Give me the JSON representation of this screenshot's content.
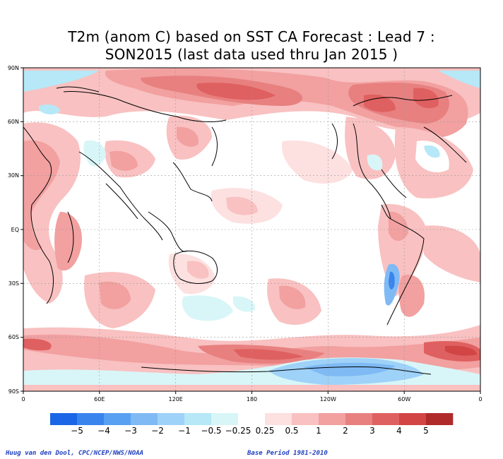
{
  "title": {
    "line1": "T2m (anom C) based on SST CA Forecast : Lead 7 :",
    "line2": "SON2015 (last data used thru Jan 2015 )"
  },
  "map": {
    "lat_labels": [
      "90N",
      "60N",
      "30N",
      "EQ",
      "30S",
      "60S",
      "90S"
    ],
    "lon_labels": [
      "0",
      "60E",
      "120E",
      "180",
      "120W",
      "60W",
      "0"
    ],
    "projection": "cylindrical equidistant, 0E to 360E",
    "grid": true
  },
  "colorbar": {
    "labels": [
      "−5",
      "−4",
      "−3",
      "−2",
      "−1",
      "−0.5",
      "−0.25",
      "0.25",
      "0.5",
      "1",
      "2",
      "3",
      "4",
      "5"
    ],
    "colors": [
      "#1a66e6",
      "#3a84ee",
      "#5aa0f2",
      "#7fbaf5",
      "#9fd2f8",
      "#b6e8f7",
      "#d8f6f8",
      "#ffffff",
      "#fde0e0",
      "#f9c1c1",
      "#f2a0a0",
      "#e88080",
      "#df6060",
      "#d24545",
      "#b02a2a"
    ]
  },
  "footer": {
    "credit": "Huug van den Dool, CPC/NCEP/NWS/NOAA",
    "base_period": "Base Period 1981-2010"
  }
}
